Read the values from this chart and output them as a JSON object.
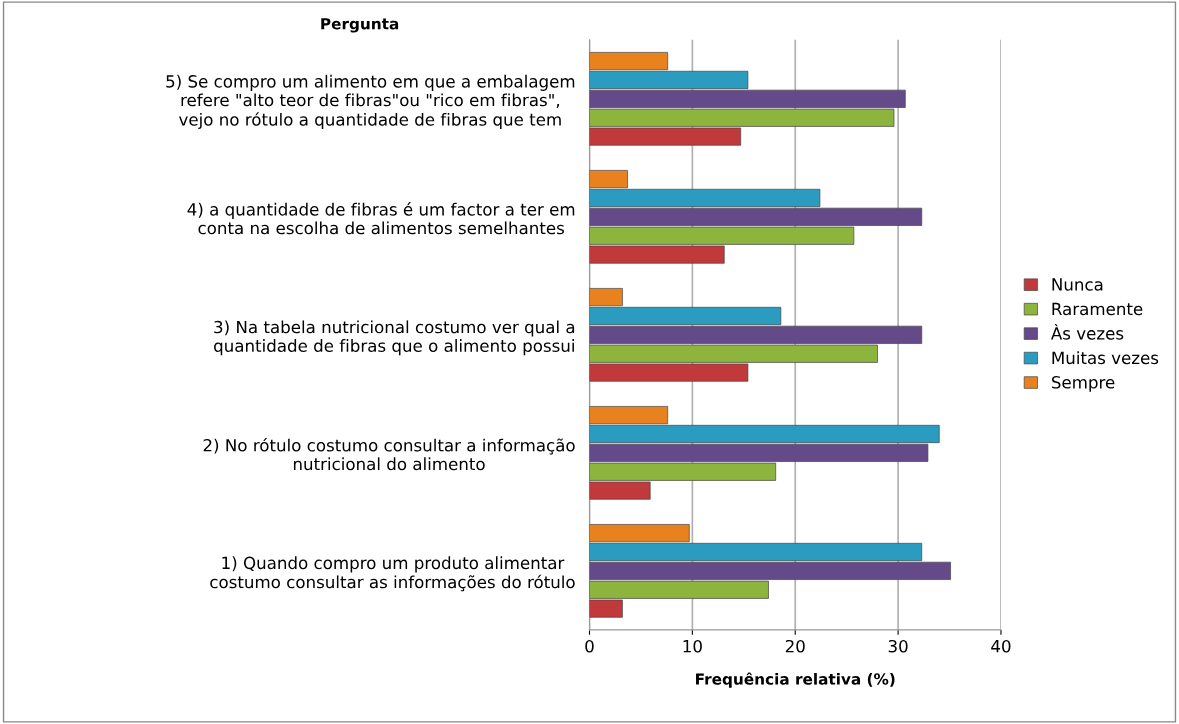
{
  "chart_data": {
    "type": "bar",
    "orientation": "horizontal",
    "ylabel": "Pergunta",
    "xlabel": "Frequência relativa (%)",
    "categories": [
      "5) Se compro um alimento em que a embalagem\nrefere \"alto teor de fibras\"ou \"rico em fibras\",\nvejo no rótulo a quantidade de fibras que tem",
      "4) a quantidade de fibras é um factor a ter em\nconta na escolha de alimentos semelhantes",
      "3) Na tabela nutricional costumo ver qual a\nquantidade de fibras que o alimento possui",
      "2) No rótulo costumo consultar a informação\nnutricional do alimento",
      "1) Quando compro um produto alimentar\ncostumo consultar as informações do rótulo"
    ],
    "series": [
      {
        "name": "Sempre",
        "color": "#e8821e",
        "values": [
          7.6,
          3.7,
          3.2,
          7.6,
          9.7
        ]
      },
      {
        "name": "Muitas vezes",
        "color": "#2b9cc0",
        "values": [
          15.4,
          22.4,
          18.6,
          34.0,
          32.3
        ]
      },
      {
        "name": "Às vezes",
        "color": "#644a88",
        "values": [
          30.7,
          32.3,
          32.3,
          32.9,
          35.1
        ]
      },
      {
        "name": "Raramente",
        "color": "#8db43c",
        "values": [
          29.6,
          25.7,
          28.0,
          18.1,
          17.4
        ]
      },
      {
        "name": "Nunca",
        "color": "#c0393b",
        "values": [
          14.7,
          13.1,
          15.4,
          5.9,
          3.2
        ]
      }
    ],
    "xlim": [
      0,
      40
    ],
    "xticks": [
      0,
      10,
      20,
      30,
      40
    ],
    "grid": "x",
    "legend": "right"
  }
}
